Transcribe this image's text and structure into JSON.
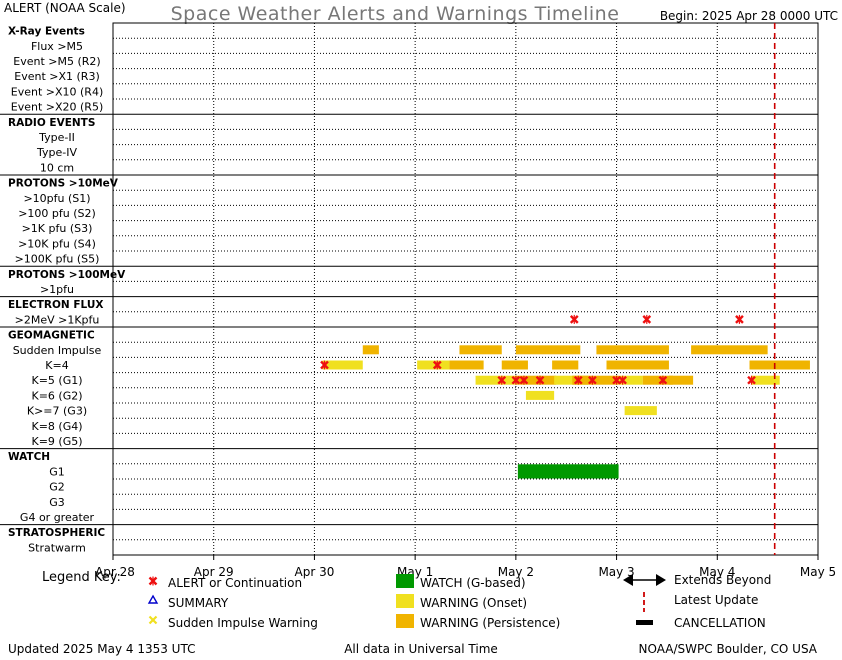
{
  "header": {
    "corner_label": "ALERT (NOAA Scale)",
    "title": "Space Weather Alerts and Warnings Timeline",
    "begin": "Begin: 2025 Apr 28 0000 UTC"
  },
  "footer": {
    "updated": "Updated 2025 May  4 1353 UTC",
    "timezone_note": "All data in Universal Time",
    "credit": "NOAA/SWPC Boulder, CO USA"
  },
  "legend": {
    "title": "Legend Key:",
    "items": [
      {
        "key": "alert",
        "label": "ALERT or Continuation"
      },
      {
        "key": "summary",
        "label": "SUMMARY"
      },
      {
        "key": "sudden",
        "label": "Sudden Impulse Warning"
      },
      {
        "key": "watch",
        "label": "WATCH (G-based)"
      },
      {
        "key": "warning_onset",
        "label": "WARNING (Onset)"
      },
      {
        "key": "warning_persist",
        "label": "WARNING (Persistence)"
      },
      {
        "key": "extends",
        "label": "Extends Beyond"
      },
      {
        "key": "latest",
        "label": "Latest Update"
      },
      {
        "key": "cancel",
        "label": "CANCELLATION"
      }
    ]
  },
  "colors": {
    "alert": "#ee1111",
    "summary": "#0000cc",
    "sudden": "#f0e020",
    "watch": "#009900",
    "warning_onset": "#f0e020",
    "warning_persist": "#f0b400",
    "latest_update": "#cc0000",
    "grid": "#000000"
  },
  "chart_data": {
    "type": "timeline",
    "x_unit": "days since 2025 Apr 28 0000 UTC",
    "x_range": [
      0,
      7
    ],
    "x_ticks": [
      "Apr 28",
      "Apr 29",
      "Apr 30",
      "May 1",
      "May 2",
      "May 3",
      "May 4",
      "May 5"
    ],
    "latest_update": 6.57,
    "rows": [
      {
        "label": "X-Ray Events",
        "header": true
      },
      {
        "label": "Flux >M5"
      },
      {
        "label": "Event >M5 (R2)"
      },
      {
        "label": "Event >X1 (R3)"
      },
      {
        "label": "Event >X10 (R4)"
      },
      {
        "label": "Event >X20 (R5)"
      },
      {
        "label": "RADIO EVENTS",
        "header": true
      },
      {
        "label": "Type-II"
      },
      {
        "label": "Type-IV"
      },
      {
        "label": "10 cm"
      },
      {
        "label": "PROTONS >10MeV",
        "header": true
      },
      {
        "label": ">10pfu (S1)"
      },
      {
        "label": ">100 pfu (S2)"
      },
      {
        "label": ">1K pfu (S3)"
      },
      {
        "label": ">10K pfu (S4)"
      },
      {
        "label": ">100K pfu (S5)"
      },
      {
        "label": "PROTONS >100MeV",
        "header": true
      },
      {
        "label": ">1pfu"
      },
      {
        "label": "ELECTRON FLUX",
        "header": true
      },
      {
        "label": ">2MeV >1Kpfu"
      },
      {
        "label": "GEOMAGNETIC",
        "header": true
      },
      {
        "label": "Sudden Impulse"
      },
      {
        "label": "K=4"
      },
      {
        "label": "K=5 (G1)"
      },
      {
        "label": "K=6 (G2)"
      },
      {
        "label": "K>=7 (G3)"
      },
      {
        "label": "K=8 (G4)"
      },
      {
        "label": "K=9 (G5)"
      },
      {
        "label": "WATCH",
        "header": true
      },
      {
        "label": "G1"
      },
      {
        "label": "G2"
      },
      {
        "label": "G3"
      },
      {
        "label": "G4 or greater"
      },
      {
        "label": "STRATOSPHERIC",
        "header": true
      },
      {
        "label": "Stratwarm"
      }
    ],
    "bars": [
      {
        "row": 21,
        "start": 2.48,
        "end": 2.64,
        "kind": "warning_persist"
      },
      {
        "row": 21,
        "start": 3.44,
        "end": 3.86,
        "kind": "warning_persist"
      },
      {
        "row": 21,
        "start": 4.0,
        "end": 4.64,
        "kind": "warning_persist"
      },
      {
        "row": 21,
        "start": 4.8,
        "end": 5.52,
        "kind": "warning_persist"
      },
      {
        "row": 21,
        "start": 5.74,
        "end": 6.5,
        "kind": "warning_persist"
      },
      {
        "row": 22,
        "start": 2.08,
        "end": 2.48,
        "kind": "warning_onset"
      },
      {
        "row": 22,
        "start": 3.02,
        "end": 3.34,
        "kind": "warning_onset"
      },
      {
        "row": 22,
        "start": 3.34,
        "end": 3.68,
        "kind": "warning_persist"
      },
      {
        "row": 22,
        "start": 3.86,
        "end": 4.12,
        "kind": "warning_persist"
      },
      {
        "row": 22,
        "start": 4.36,
        "end": 4.62,
        "kind": "warning_persist"
      },
      {
        "row": 22,
        "start": 4.9,
        "end": 5.52,
        "kind": "warning_persist"
      },
      {
        "row": 22,
        "start": 6.32,
        "end": 6.92,
        "kind": "warning_persist"
      },
      {
        "row": 23,
        "start": 3.6,
        "end": 4.0,
        "kind": "warning_onset"
      },
      {
        "row": 23,
        "start": 4.0,
        "end": 4.4,
        "kind": "warning_persist"
      },
      {
        "row": 23,
        "start": 4.38,
        "end": 4.72,
        "kind": "warning_onset"
      },
      {
        "row": 23,
        "start": 4.56,
        "end": 4.76,
        "kind": "warning_persist"
      },
      {
        "row": 23,
        "start": 4.76,
        "end": 5.02,
        "kind": "warning_persist"
      },
      {
        "row": 23,
        "start": 5.02,
        "end": 5.26,
        "kind": "warning_onset"
      },
      {
        "row": 23,
        "start": 5.26,
        "end": 5.56,
        "kind": "warning_persist"
      },
      {
        "row": 23,
        "start": 5.52,
        "end": 5.76,
        "kind": "warning_persist"
      },
      {
        "row": 23,
        "start": 6.34,
        "end": 6.62,
        "kind": "warning_onset"
      },
      {
        "row": 24,
        "start": 4.1,
        "end": 4.38,
        "kind": "warning_onset"
      },
      {
        "row": 25,
        "start": 5.08,
        "end": 5.4,
        "kind": "warning_onset"
      },
      {
        "row": 29,
        "start": 4.02,
        "end": 5.02,
        "kind": "watch"
      }
    ],
    "markers": [
      {
        "row": 19,
        "x": 4.58,
        "kind": "alert"
      },
      {
        "row": 19,
        "x": 5.3,
        "kind": "alert"
      },
      {
        "row": 19,
        "x": 6.22,
        "kind": "alert"
      },
      {
        "row": 22,
        "x": 2.1,
        "kind": "alert"
      },
      {
        "row": 22,
        "x": 3.22,
        "kind": "alert"
      },
      {
        "row": 23,
        "x": 3.86,
        "kind": "alert"
      },
      {
        "row": 23,
        "x": 4.0,
        "kind": "alert"
      },
      {
        "row": 23,
        "x": 4.08,
        "kind": "alert"
      },
      {
        "row": 23,
        "x": 4.24,
        "kind": "alert"
      },
      {
        "row": 23,
        "x": 4.62,
        "kind": "alert"
      },
      {
        "row": 23,
        "x": 4.76,
        "kind": "alert"
      },
      {
        "row": 23,
        "x": 5.0,
        "kind": "alert"
      },
      {
        "row": 23,
        "x": 5.06,
        "kind": "alert"
      },
      {
        "row": 23,
        "x": 5.46,
        "kind": "alert"
      },
      {
        "row": 23,
        "x": 6.34,
        "kind": "alert"
      }
    ]
  }
}
